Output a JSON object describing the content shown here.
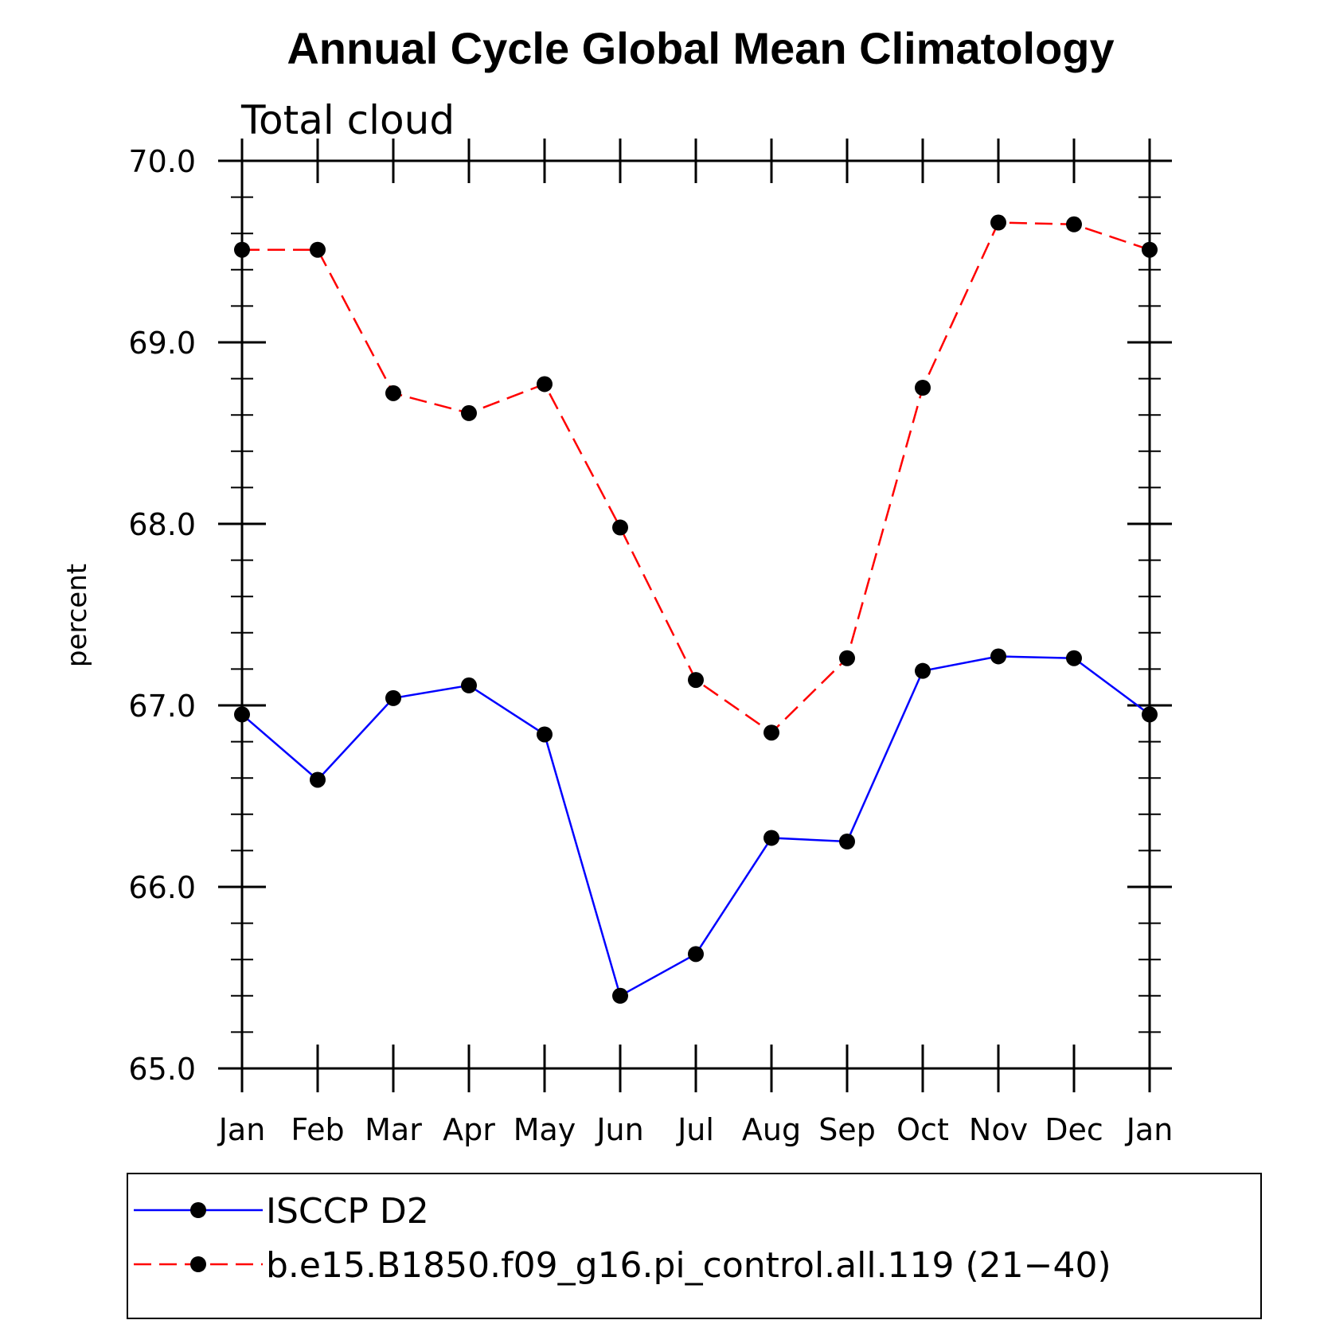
{
  "chart_data": {
    "type": "line",
    "title": "Annual Cycle Global Mean Climatology",
    "subtitle": "Total cloud",
    "xlabel": "",
    "ylabel": "percent",
    "categories": [
      "Jan",
      "Feb",
      "Mar",
      "Apr",
      "May",
      "Jun",
      "Jul",
      "Aug",
      "Sep",
      "Oct",
      "Nov",
      "Dec",
      "Jan"
    ],
    "ylim": [
      65.0,
      70.0
    ],
    "yticks": [
      "65.0",
      "66.0",
      "67.0",
      "68.0",
      "69.0",
      "70.0"
    ],
    "grid": false,
    "legend_position": "bottom",
    "series": [
      {
        "name": "ISCCP D2",
        "color": "#0000ff",
        "style": "solid",
        "marker": "filled-circle",
        "values": [
          66.95,
          66.59,
          67.04,
          67.11,
          66.84,
          65.4,
          65.63,
          66.27,
          66.25,
          67.19,
          67.27,
          67.26,
          66.95
        ]
      },
      {
        "name": "b.e15.B1850.f09_g16.pi_control.all.119 (21−40)",
        "color": "#ff0000",
        "style": "dashed",
        "marker": "filled-circle",
        "values": [
          69.51,
          69.51,
          68.72,
          68.61,
          68.77,
          67.98,
          67.14,
          66.85,
          67.26,
          68.75,
          69.66,
          69.65,
          69.51
        ]
      }
    ]
  }
}
